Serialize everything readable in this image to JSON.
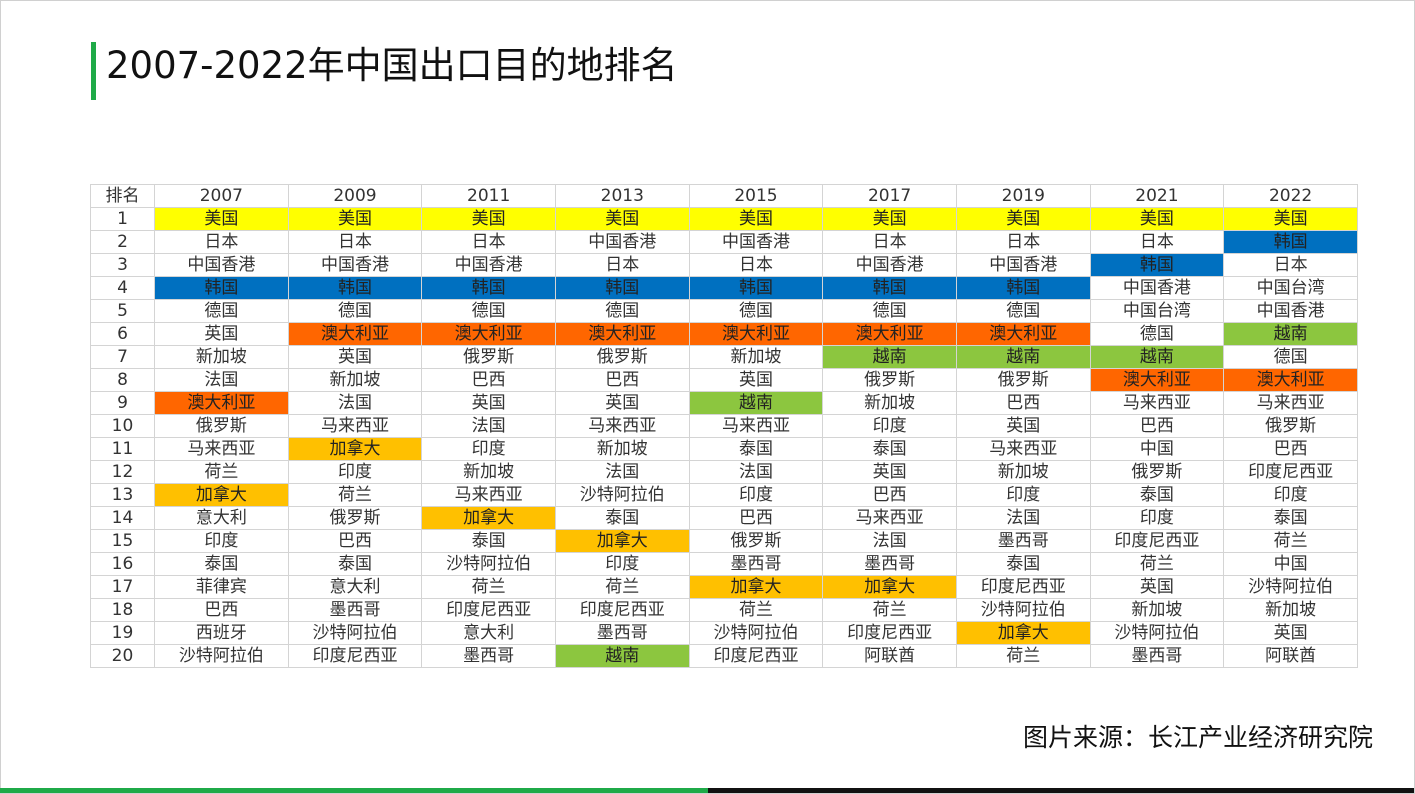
{
  "title": "2007-2022年中国出口目的地排名",
  "source": "图片来源：长江产业经济研究院",
  "colors": {
    "title_bar": "#1faa48",
    "美国": "#ffff00",
    "韩国": "#0070c0",
    "澳大利亚": "#ff6600",
    "越南": "#8cc63f",
    "加拿大": "#ffc000"
  },
  "table": {
    "header": [
      "排名",
      "2007",
      "2009",
      "2011",
      "2013",
      "2015",
      "2017",
      "2019",
      "2021",
      "2022"
    ],
    "rows": [
      [
        "1",
        "美国",
        "美国",
        "美国",
        "美国",
        "美国",
        "美国",
        "美国",
        "美国",
        "美国"
      ],
      [
        "2",
        "日本",
        "日本",
        "日本",
        "中国香港",
        "中国香港",
        "日本",
        "日本",
        "日本",
        "韩国"
      ],
      [
        "3",
        "中国香港",
        "中国香港",
        "中国香港",
        "日本",
        "日本",
        "中国香港",
        "中国香港",
        "韩国",
        "日本"
      ],
      [
        "4",
        "韩国",
        "韩国",
        "韩国",
        "韩国",
        "韩国",
        "韩国",
        "韩国",
        "中国香港",
        "中国台湾"
      ],
      [
        "5",
        "德国",
        "德国",
        "德国",
        "德国",
        "德国",
        "德国",
        "德国",
        "中国台湾",
        "中国香港"
      ],
      [
        "6",
        "英国",
        "澳大利亚",
        "澳大利亚",
        "澳大利亚",
        "澳大利亚",
        "澳大利亚",
        "澳大利亚",
        "德国",
        "越南"
      ],
      [
        "7",
        "新加坡",
        "英国",
        "俄罗斯",
        "俄罗斯",
        "新加坡",
        "越南",
        "越南",
        "越南",
        "德国"
      ],
      [
        "8",
        "法国",
        "新加坡",
        "巴西",
        "巴西",
        "英国",
        "俄罗斯",
        "俄罗斯",
        "澳大利亚",
        "澳大利亚"
      ],
      [
        "9",
        "澳大利亚",
        "法国",
        "英国",
        "英国",
        "越南",
        "新加坡",
        "巴西",
        "马来西亚",
        "马来西亚"
      ],
      [
        "10",
        "俄罗斯",
        "马来西亚",
        "法国",
        "马来西亚",
        "马来西亚",
        "印度",
        "英国",
        "巴西",
        "俄罗斯"
      ],
      [
        "11",
        "马来西亚",
        "加拿大",
        "印度",
        "新加坡",
        "泰国",
        "泰国",
        "马来西亚",
        "中国",
        "巴西"
      ],
      [
        "12",
        "荷兰",
        "印度",
        "新加坡",
        "法国",
        "法国",
        "英国",
        "新加坡",
        "俄罗斯",
        "印度尼西亚"
      ],
      [
        "13",
        "加拿大",
        "荷兰",
        "马来西亚",
        "沙特阿拉伯",
        "印度",
        "巴西",
        "印度",
        "泰国",
        "印度"
      ],
      [
        "14",
        "意大利",
        "俄罗斯",
        "加拿大",
        "泰国",
        "巴西",
        "马来西亚",
        "法国",
        "印度",
        "泰国"
      ],
      [
        "15",
        "印度",
        "巴西",
        "泰国",
        "加拿大",
        "俄罗斯",
        "法国",
        "墨西哥",
        "印度尼西亚",
        "荷兰"
      ],
      [
        "16",
        "泰国",
        "泰国",
        "沙特阿拉伯",
        "印度",
        "墨西哥",
        "墨西哥",
        "泰国",
        "荷兰",
        "中国"
      ],
      [
        "17",
        "菲律宾",
        "意大利",
        "荷兰",
        "荷兰",
        "加拿大",
        "加拿大",
        "印度尼西亚",
        "英国",
        "沙特阿拉伯"
      ],
      [
        "18",
        "巴西",
        "墨西哥",
        "印度尼西亚",
        "印度尼西亚",
        "荷兰",
        "荷兰",
        "沙特阿拉伯",
        "新加坡",
        "新加坡"
      ],
      [
        "19",
        "西班牙",
        "沙特阿拉伯",
        "意大利",
        "墨西哥",
        "沙特阿拉伯",
        "印度尼西亚",
        "加拿大",
        "沙特阿拉伯",
        "英国"
      ],
      [
        "20",
        "沙特阿拉伯",
        "印度尼西亚",
        "墨西哥",
        "越南",
        "印度尼西亚",
        "阿联酋",
        "荷兰",
        "墨西哥",
        "阿联酋"
      ]
    ]
  }
}
